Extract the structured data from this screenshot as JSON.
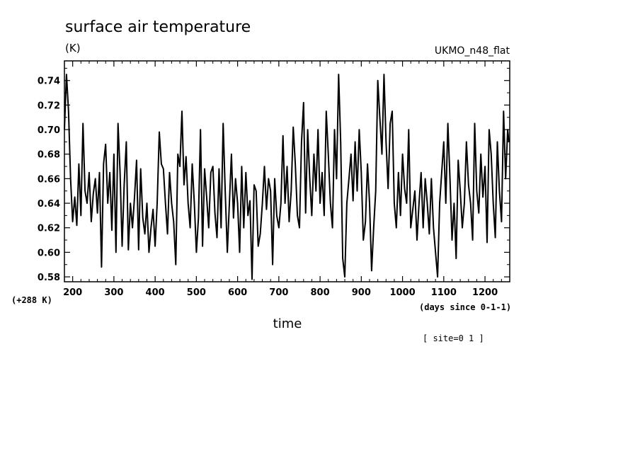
{
  "chart_data": {
    "type": "line",
    "title": "surface air temperature",
    "units": "(K)",
    "model": "UKMO_n48_flat",
    "offset_label": "(+288 K)",
    "xlabel": "time",
    "x_units_label": "(days since 0-1-1)",
    "site_label": "[ site=0 1 ]",
    "xlim": [
      180,
      1260
    ],
    "ylim": [
      0.576,
      0.756
    ],
    "xticks": [
      200,
      300,
      400,
      500,
      600,
      700,
      800,
      900,
      1000,
      1100,
      1200
    ],
    "yticks": [
      0.58,
      0.6,
      0.62,
      0.64,
      0.66,
      0.68,
      0.7,
      0.72,
      0.74
    ],
    "ytick_labels": [
      "0.58",
      "0.60",
      "0.62",
      "0.64",
      "0.66",
      "0.68",
      "0.70",
      "0.72",
      "0.74"
    ],
    "series": [
      {
        "x": [
          180,
          185,
          190,
          195,
          200,
          205,
          210,
          215,
          220,
          225,
          230,
          235,
          240,
          245,
          250,
          255,
          260,
          265,
          270,
          275,
          280,
          285,
          290,
          295,
          300,
          305,
          310,
          315,
          320,
          325,
          330,
          335,
          340,
          345,
          350,
          355,
          360,
          365,
          370,
          375,
          380,
          385,
          390,
          395,
          400,
          405,
          410,
          415,
          420,
          425,
          430,
          435,
          440,
          445,
          450,
          455,
          460,
          465,
          470,
          475,
          480,
          485,
          490,
          495,
          500,
          505,
          510,
          515,
          520,
          525,
          530,
          535,
          540,
          545,
          550,
          555,
          560,
          565,
          570,
          575,
          580,
          585,
          590,
          595,
          600,
          605,
          610,
          615,
          620,
          625,
          630,
          635,
          640,
          645,
          650,
          655,
          660,
          665,
          670,
          675,
          680,
          685,
          690,
          695,
          700,
          705,
          710,
          715,
          720,
          725,
          730,
          735,
          740,
          745,
          750,
          755,
          760,
          765,
          770,
          775,
          780,
          785,
          790,
          795,
          800,
          805,
          810,
          815,
          820,
          825,
          830,
          835,
          840,
          845,
          850,
          855,
          860,
          865,
          870,
          875,
          880,
          885,
          890,
          895,
          900,
          905,
          910,
          915,
          920,
          925,
          930,
          935,
          940,
          945,
          950,
          955,
          960,
          965,
          970,
          975,
          980,
          985,
          990,
          995,
          1000,
          1005,
          1010,
          1015,
          1020,
          1025,
          1030,
          1035,
          1040,
          1045,
          1050,
          1055,
          1060,
          1065,
          1070,
          1075,
          1080,
          1085,
          1090,
          1095,
          1100,
          1105,
          1110,
          1115,
          1120,
          1125,
          1130,
          1135,
          1140,
          1145,
          1150,
          1155,
          1160,
          1165,
          1170,
          1175,
          1180,
          1185,
          1190,
          1195,
          1200,
          1205,
          1210,
          1215,
          1220,
          1225,
          1230,
          1235,
          1240,
          1245,
          1250,
          1255,
          1258
        ],
        "values": [
          0.7,
          0.745,
          0.715,
          0.66,
          0.625,
          0.645,
          0.622,
          0.672,
          0.63,
          0.705,
          0.65,
          0.64,
          0.665,
          0.625,
          0.648,
          0.66,
          0.632,
          0.665,
          0.588,
          0.672,
          0.688,
          0.64,
          0.665,
          0.618,
          0.68,
          0.6,
          0.705,
          0.665,
          0.605,
          0.655,
          0.69,
          0.602,
          0.64,
          0.62,
          0.645,
          0.675,
          0.602,
          0.668,
          0.628,
          0.615,
          0.64,
          0.6,
          0.62,
          0.635,
          0.605,
          0.64,
          0.698,
          0.672,
          0.668,
          0.64,
          0.615,
          0.665,
          0.64,
          0.625,
          0.59,
          0.68,
          0.67,
          0.715,
          0.655,
          0.678,
          0.64,
          0.62,
          0.672,
          0.64,
          0.6,
          0.628,
          0.7,
          0.605,
          0.668,
          0.645,
          0.62,
          0.665,
          0.67,
          0.632,
          0.612,
          0.668,
          0.62,
          0.705,
          0.65,
          0.6,
          0.64,
          0.68,
          0.628,
          0.66,
          0.64,
          0.6,
          0.67,
          0.62,
          0.665,
          0.63,
          0.642,
          0.578,
          0.655,
          0.65,
          0.605,
          0.615,
          0.64,
          0.67,
          0.635,
          0.66,
          0.65,
          0.59,
          0.66,
          0.63,
          0.62,
          0.64,
          0.695,
          0.64,
          0.67,
          0.625,
          0.65,
          0.702,
          0.672,
          0.63,
          0.62,
          0.69,
          0.722,
          0.632,
          0.7,
          0.66,
          0.63,
          0.68,
          0.65,
          0.7,
          0.64,
          0.665,
          0.63,
          0.715,
          0.68,
          0.64,
          0.62,
          0.7,
          0.66,
          0.745,
          0.69,
          0.595,
          0.58,
          0.64,
          0.66,
          0.68,
          0.642,
          0.69,
          0.65,
          0.7,
          0.665,
          0.61,
          0.625,
          0.672,
          0.64,
          0.585,
          0.62,
          0.65,
          0.74,
          0.71,
          0.68,
          0.745,
          0.69,
          0.652,
          0.705,
          0.715,
          0.64,
          0.62,
          0.665,
          0.63,
          0.68,
          0.652,
          0.64,
          0.7,
          0.62,
          0.635,
          0.65,
          0.61,
          0.64,
          0.665,
          0.62,
          0.66,
          0.64,
          0.615,
          0.66,
          0.62,
          0.6,
          0.58,
          0.64,
          0.665,
          0.69,
          0.64,
          0.705,
          0.66,
          0.61,
          0.64,
          0.595,
          0.675,
          0.65,
          0.62,
          0.64,
          0.69,
          0.655,
          0.64,
          0.61,
          0.705,
          0.65,
          0.632,
          0.68,
          0.645,
          0.67,
          0.608,
          0.7,
          0.68,
          0.64,
          0.612,
          0.69,
          0.65,
          0.625,
          0.715,
          0.66,
          0.7,
          0.69
        ]
      }
    ]
  }
}
